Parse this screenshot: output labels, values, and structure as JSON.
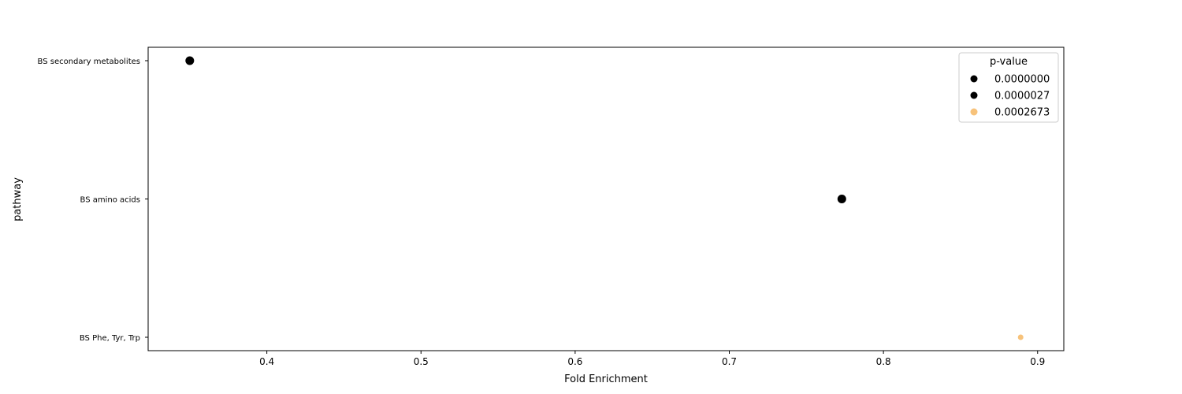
{
  "chart_data": {
    "type": "scatter",
    "title": "",
    "xlabel": "Fold Enrichment",
    "ylabel": "pathway",
    "xlim": [
      0.323,
      0.917
    ],
    "xticks": [
      0.4,
      0.5,
      0.6,
      0.7,
      0.8,
      0.9
    ],
    "xtick_labels": [
      "0.4",
      "0.5",
      "0.6",
      "0.7",
      "0.8",
      "0.9"
    ],
    "categories": [
      "BS secondary metabolites",
      "BS amino acids",
      "BS Phe, Tyr, Trp"
    ],
    "grid": false,
    "legend": {
      "title": "p-value",
      "placement": "top-right",
      "entries": [
        {
          "label": "0.0000000",
          "color": "#000000"
        },
        {
          "label": "0.0000027",
          "color": "#000000"
        },
        {
          "label": "0.0002673",
          "color": "#f7c27a"
        }
      ]
    },
    "points": [
      {
        "category": "BS secondary metabolites",
        "x": 0.35,
        "p_value": "0.0000000",
        "color": "#000000",
        "size": "large"
      },
      {
        "category": "BS amino acids",
        "x": 0.773,
        "p_value": "0.0000027",
        "color": "#000000",
        "size": "large"
      },
      {
        "category": "BS Phe, Tyr, Trp",
        "x": 0.889,
        "p_value": "0.0002673",
        "color": "#f7c27a",
        "size": "small"
      }
    ]
  }
}
